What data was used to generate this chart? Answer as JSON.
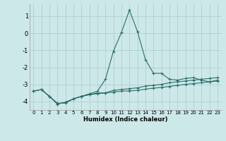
{
  "xlabel": "Humidex (Indice chaleur)",
  "background_color": "#cce8e8",
  "grid_color": "#aacccc",
  "line_color": "#2d6e6a",
  "xlim": [
    -0.5,
    23.5
  ],
  "ylim": [
    -4.5,
    1.7
  ],
  "yticks": [
    1,
    0,
    -1,
    -2,
    -3,
    -4
  ],
  "xticks": [
    0,
    1,
    2,
    3,
    4,
    5,
    6,
    7,
    8,
    9,
    10,
    11,
    12,
    13,
    14,
    15,
    16,
    17,
    18,
    19,
    20,
    21,
    22,
    23
  ],
  "line1_x": [
    0,
    1,
    2,
    3,
    4,
    5,
    6,
    7,
    8,
    9,
    10,
    11,
    12,
    13,
    14,
    15,
    16,
    17,
    18,
    19,
    20,
    21,
    22,
    23
  ],
  "line1_y": [
    -3.4,
    -3.3,
    -3.7,
    -4.1,
    -4.1,
    -3.85,
    -3.7,
    -3.55,
    -3.4,
    -2.7,
    -1.05,
    0.05,
    1.35,
    0.1,
    -1.55,
    -2.35,
    -2.35,
    -2.7,
    -2.75,
    -2.65,
    -2.6,
    -2.75,
    -2.85,
    -2.75
  ],
  "line2_x": [
    0,
    1,
    2,
    3,
    4,
    5,
    6,
    7,
    8,
    9,
    10,
    11,
    12,
    13,
    14,
    15,
    16,
    17,
    18,
    19,
    20,
    21,
    22,
    23
  ],
  "line2_y": [
    -3.4,
    -3.3,
    -3.7,
    -4.15,
    -4.05,
    -3.85,
    -3.7,
    -3.6,
    -3.5,
    -3.5,
    -3.35,
    -3.3,
    -3.25,
    -3.2,
    -3.1,
    -3.05,
    -3.0,
    -2.9,
    -2.85,
    -2.8,
    -2.75,
    -2.7,
    -2.65,
    -2.6
  ],
  "line3_x": [
    0,
    1,
    2,
    3,
    4,
    5,
    6,
    7,
    8,
    9,
    10,
    11,
    12,
    13,
    14,
    15,
    16,
    17,
    18,
    19,
    20,
    21,
    22,
    23
  ],
  "line3_y": [
    -3.4,
    -3.3,
    -3.7,
    -4.15,
    -4.05,
    -3.85,
    -3.7,
    -3.6,
    -3.55,
    -3.5,
    -3.45,
    -3.4,
    -3.38,
    -3.35,
    -3.28,
    -3.22,
    -3.18,
    -3.12,
    -3.05,
    -3.0,
    -2.95,
    -2.9,
    -2.85,
    -2.8
  ]
}
